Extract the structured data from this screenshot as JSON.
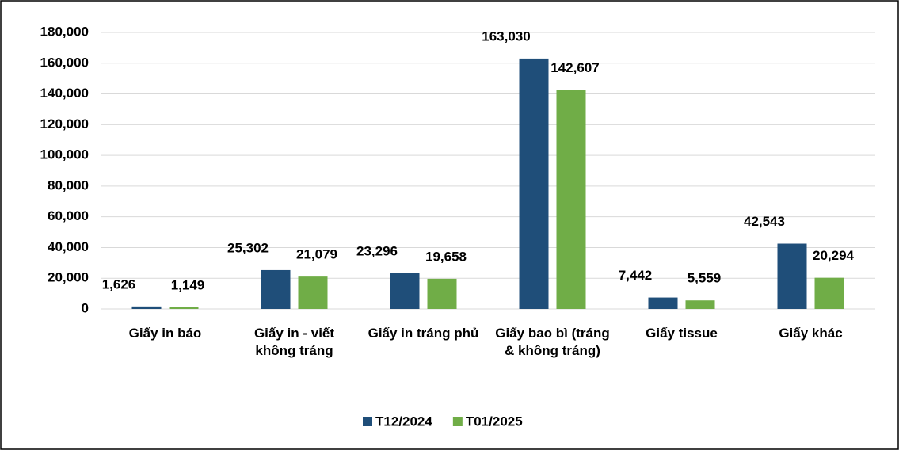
{
  "chart_data": {
    "type": "bar",
    "categories": [
      "Giấy in báo",
      "Giấy in - viết không tráng",
      "Giấy in tráng phủ",
      "Giấy bao bì (tráng & không tráng)",
      "Giấy tissue",
      "Giấy khác"
    ],
    "series": [
      {
        "name": "T12/2024",
        "color": "#1f4e79",
        "values": [
          1626,
          25302,
          23296,
          163030,
          7442,
          42543
        ],
        "value_labels": [
          "1,626",
          "25,302",
          "23,296",
          "163,030",
          "7,442",
          "42,543"
        ]
      },
      {
        "name": "T01/2025",
        "color": "#70ad47",
        "values": [
          1149,
          21079,
          19658,
          142607,
          5559,
          20294
        ],
        "value_labels": [
          "1,149",
          "21,079",
          "19,658",
          "142,607",
          "5,559",
          "20,294"
        ]
      }
    ],
    "ylim": [
      0,
      180000
    ],
    "yticks": [
      0,
      {
        "value": 20000,
        "label": "20,000"
      },
      {
        "value": 40000,
        "label": "40,000"
      },
      {
        "value": 60000,
        "label": "60,000"
      },
      {
        "value": 80000,
        "label": "80,000"
      },
      {
        "value": 100000,
        "label": "100,000"
      },
      {
        "value": 120000,
        "label": "120,000"
      },
      {
        "value": 140000,
        "label": "140,000"
      },
      {
        "value": 160000,
        "label": "160,000"
      },
      {
        "value": 180000,
        "label": "180,000"
      }
    ],
    "grid": true,
    "legend": "bottom"
  }
}
